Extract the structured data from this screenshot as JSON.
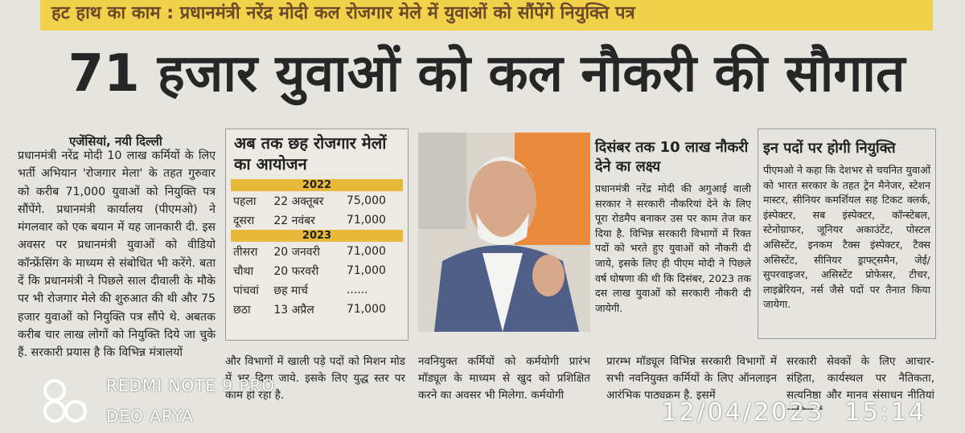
{
  "top_strip": "हट हाथ का काम : प्रधानमंत्री नरेंद्र मोदी कल रोजगार मेले में युवाओं को सौंपेंगे नियुक्ति पत्र",
  "headline": "71 हजार युवाओं को कल नौकरी की सौगात",
  "byline": "एजेंसियां, नयी दिल्ली",
  "article": "प्रधानमंत्री नरेंद्र मोदी 10 लाख कर्मियों के लिए भर्ती अभियान 'रोजगार मेला' के तहत गुरुवार को करीब 71,000 युवाओं को नियुक्ति पत्र सौंपेंगे. प्रधानमंत्री कार्यालय (पीएमओ) ने मंगलवार को एक बयान में यह जानकारी दी. इस अवसर पर प्रधानमंत्री युवाओं को वीडियो कॉन्फ्रेंसिंग के माध्यम से संबोधित भी करेंगे. बता दें कि प्रधानमंत्री ने पिछले साल दीवाली के मौके पर भी रोजगार मेले की शुरुआत की थी और 75 हजार युवाओं को नियुक्ति पत्र सौंपे थे. अबतक करीब चार लाख लोगों को नियुक्ति दिये जा चुके हैं. सरकारी प्रयास है कि विभिन्न मंत्रालयों",
  "fairs_box": {
    "title": "अब तक छह रोजगार मेलों का आयोजन",
    "groups": [
      {
        "year": "2022",
        "rows": [
          [
            "पहला",
            "22 अक्तूबर",
            "75,000"
          ],
          [
            "दूसरा",
            "22 नवंबर",
            "71,000"
          ]
        ]
      },
      {
        "year": "2023",
        "rows": [
          [
            "तीसरा",
            "20 जनवरी",
            "71,000"
          ],
          [
            "चौथा",
            "20 फरवरी",
            "71,000"
          ],
          [
            "पांचवां",
            "छह मार्च",
            "......"
          ],
          [
            "छठा",
            "13 अप्रैल",
            "71,000"
          ]
        ]
      }
    ]
  },
  "target": {
    "title": "दिसंबर तक 10 लाख नौकरी देने का लक्ष्य",
    "text": "प्रधानमंत्री नरेंद्र मोदी की अगुआई वाली सरकार ने सरकारी नौकरियां देने के लिए पूरा रोडमैप बनाकर उस पर काम तेज कर दिया है. विभिन्न सरकारी विभागों में रिक्त पदों को भरते हुए युवाओं को नौकरी दी जाये, इसके लिए ही पीएम मोदी ने पिछले वर्ष घोषणा की थी कि दिसंबर, 2023 तक दस लाख युवाओं को सरकारी नौकरी दी जायेगी."
  },
  "posts": {
    "title": "इन पदों पर होगी नियुक्ति",
    "text": "पीएमओ ने कहा कि देशभर से चयनित युवाओं को भारत सरकार के तहत ट्रेन मैनेजर, स्टेशन मास्टर, सीनियर कमर्शियल सह टिकट क्लर्क, इंस्पेक्टर, सब इंस्पेक्टर, कॉन्स्टेबल, स्टेनोग्राफर, जूनियर अकाउंटेंट, पोस्टल असिस्टेंट, इनकम टैक्स इंस्पेक्टर, टैक्स असिस्टेंट, सीनियर ड्राफ्ट्समैन, जेई/सुपरवाइजर, असिस्टेंट प्रोफेसर, टीचर, लाइब्रेरियन, नर्स जैसे पदों पर तैनात किया जायेगा."
  },
  "bottom_columns": [
    "और विभागों में खाली पड़े पदों को मिशन मोड में भर दिया जाये. इसके लिए युद्ध स्तर पर काम हो रहा है.",
    "नवनियुक्त कर्मियों को कर्मयोगी प्रारंभ मॉड्यूल के माध्यम से खुद को प्रशिक्षित करने का अवसर भी मिलेगा. कर्मयोगी",
    "प्रारम्भ मॉड्यूल विभिन्न सरकारी विभागों में सभी नवनियुक्त कर्मियों के लिए ऑनलाइन आरंभिक पाठ्यक्रम है. इसमें",
    "सरकारी सेवकों के लिए आचार-संहिता, कार्यस्थल पर नैतिकता, सत्यनिष्ठा और मानव संसाधन नीतियां शामिल हैं."
  ],
  "watermark": {
    "device": "REDMI NOTE 9 PRO",
    "owner": "DEO ARYA",
    "timestamp": "12/04/2023  15:14"
  }
}
